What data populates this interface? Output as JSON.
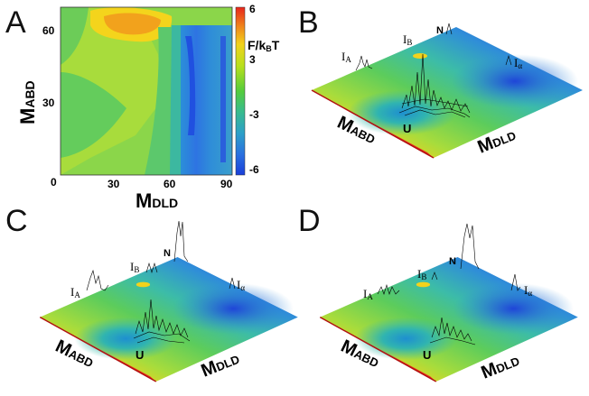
{
  "panels": {
    "a": {
      "letter": "A"
    },
    "b": {
      "letter": "B"
    },
    "c": {
      "letter": "C"
    },
    "d": {
      "letter": "D"
    }
  },
  "contour": {
    "x_axis": {
      "main": "M",
      "sub": "DLD",
      "ticks": [
        "0",
        "30",
        "60",
        "90"
      ]
    },
    "y_axis": {
      "main": "M",
      "sub": "ABD",
      "ticks": [
        "60",
        "30"
      ]
    },
    "colorbar": {
      "title": "F/k",
      "title_sub": "B",
      "title_tail": "T",
      "ticks": [
        "6",
        "3",
        "-3",
        "-6"
      ]
    }
  },
  "surface_labels": {
    "mabd_main": "M",
    "mabd_sub": "ABD",
    "mdld_main": "M",
    "mdld_sub": "DLD",
    "n": "N",
    "u": "U",
    "ia": "I",
    "ia_sub": "A",
    "ib": "I",
    "ib_sub": "B",
    "ialpha": "I",
    "ialpha_sub": "α"
  },
  "colors": {
    "cmap_low": "#1a3fd9",
    "cmap_mid": "#6cd050",
    "cmap_high": "#e8261c"
  }
}
